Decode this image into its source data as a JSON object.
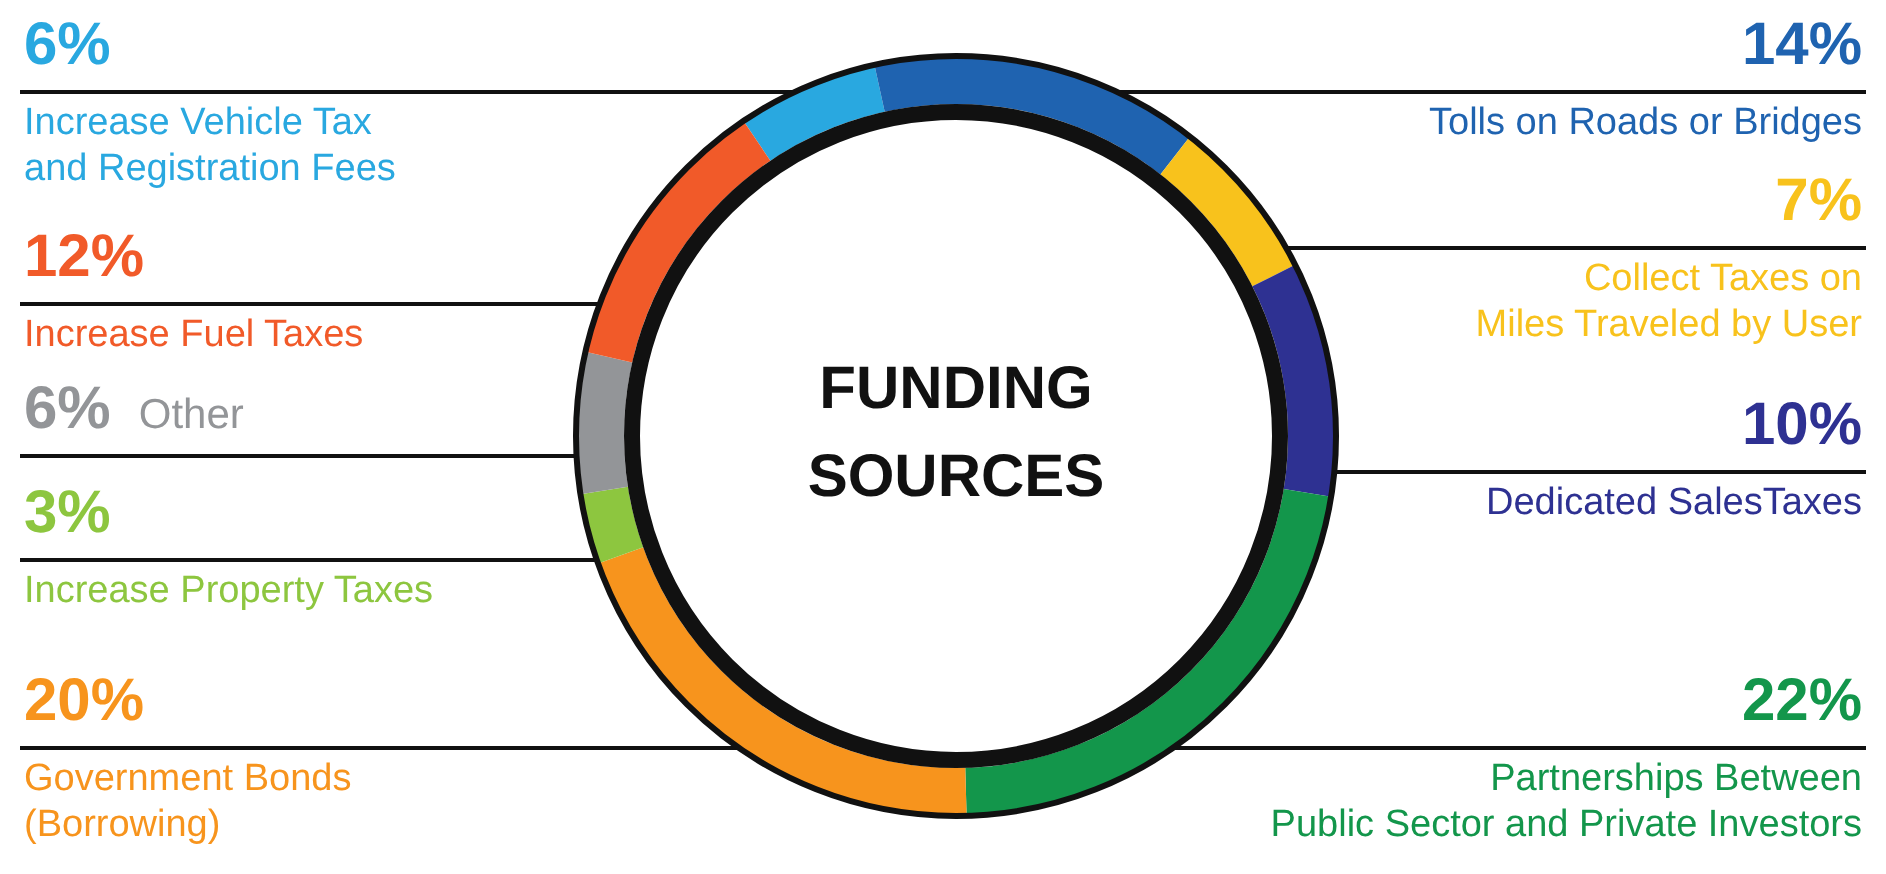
{
  "chart_data": {
    "type": "donut",
    "title": "FUNDING SOURCES",
    "categories": [
      "Increase Vehicle Tax and Registration Fees",
      "Tolls on Roads or Bridges",
      "Collect Taxes on Miles Traveled by User",
      "Dedicated SalesTaxes",
      "Partnerships Between Public Sector and Private Investors",
      "Government Bonds (Borrowing)",
      "Increase Property Taxes",
      "Other",
      "Increase Fuel Taxes"
    ],
    "values": [
      6,
      14,
      7,
      10,
      22,
      20,
      3,
      6,
      12
    ],
    "value_labels": [
      "6%",
      "14%",
      "7%",
      "10%",
      "22%",
      "20%",
      "3%",
      "6%",
      "12%"
    ],
    "colors": [
      "#29a8e0",
      "#1f63b0",
      "#f8c21c",
      "#2e3192",
      "#13964b",
      "#f7941d",
      "#8dc63f",
      "#939598",
      "#f15a29"
    ]
  }
}
